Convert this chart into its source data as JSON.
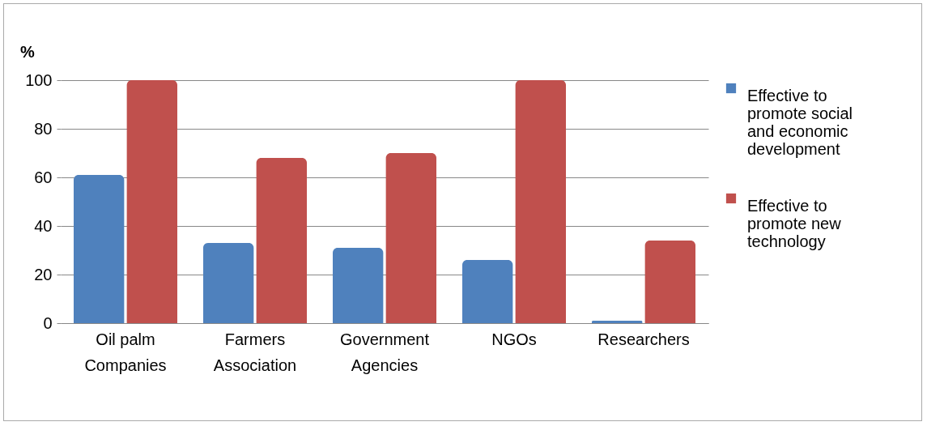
{
  "chart_data": {
    "type": "bar",
    "ylabel": "%",
    "categories": [
      "Oil palm Companies",
      "Farmers Association",
      "Government Agencies",
      "NGOs",
      "Researchers"
    ],
    "series": [
      {
        "name": "Effective to promote social and economic development",
        "color": "#4f81bd",
        "values": [
          61,
          33,
          31,
          26,
          1
        ]
      },
      {
        "name": "Effective to promote new technology",
        "color": "#c0504d",
        "values": [
          100,
          68,
          70,
          100,
          34
        ]
      }
    ],
    "ylim": [
      0,
      100
    ],
    "yticks": [
      0,
      20,
      40,
      60,
      80,
      100
    ],
    "grid": "y",
    "legend": "right"
  }
}
